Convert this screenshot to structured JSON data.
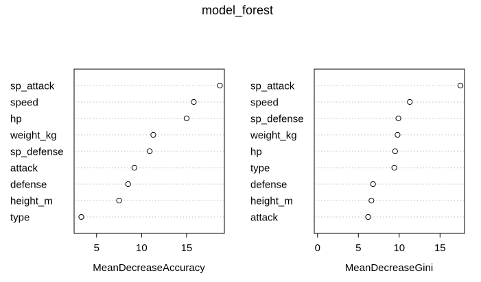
{
  "title": "model_forest",
  "chart_data": [
    {
      "type": "scatter",
      "title": "",
      "xlabel": "MeanDecreaseAccuracy",
      "ylabel": "",
      "xlim": [
        2.5,
        19.2
      ],
      "xticks": [
        5,
        10,
        15
      ],
      "grid": "dotted horizontal guides",
      "categories": [
        "sp_attack",
        "speed",
        "hp",
        "weight_kg",
        "sp_defense",
        "attack",
        "defense",
        "height_m",
        "type"
      ],
      "values": [
        18.7,
        15.8,
        15.0,
        11.3,
        10.9,
        9.2,
        8.5,
        7.5,
        3.3
      ]
    },
    {
      "type": "scatter",
      "title": "",
      "xlabel": "MeanDecreaseGini",
      "ylabel": "",
      "xlim": [
        -0.4,
        18.0
      ],
      "xticks": [
        0,
        5,
        10,
        15
      ],
      "grid": "dotted horizontal guides",
      "categories": [
        "sp_attack",
        "speed",
        "sp_defense",
        "weight_kg",
        "hp",
        "type",
        "defense",
        "height_m",
        "attack"
      ],
      "values": [
        17.5,
        11.3,
        9.9,
        9.8,
        9.5,
        9.4,
        6.8,
        6.6,
        6.2
      ]
    }
  ]
}
